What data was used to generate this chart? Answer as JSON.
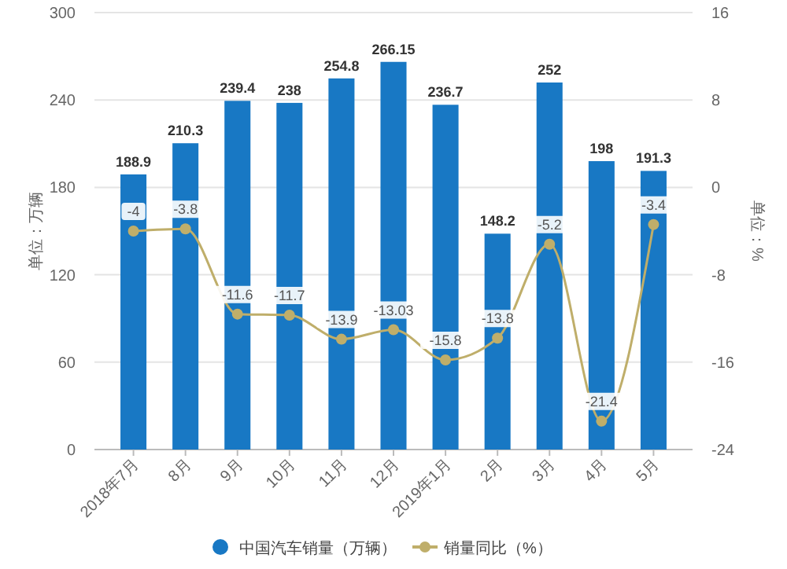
{
  "chart_data": {
    "type": "bar",
    "categories": [
      "2018年7月",
      "8月",
      "9月",
      "10月",
      "11月",
      "12月",
      "2019年1月",
      "2月",
      "3月",
      "4月",
      "5月"
    ],
    "series": [
      {
        "name": "中国汽车销量（万辆）",
        "color": "#1878c4",
        "values": [
          188.9,
          210.3,
          239.4,
          238,
          254.8,
          266.15,
          236.7,
          148.2,
          252,
          198,
          191.3
        ]
      },
      {
        "name": "销量同比（%）",
        "type": "line",
        "axis": "y2",
        "color": "#bfae6a",
        "marker": "circle",
        "values": [
          -4,
          -3.8,
          -11.6,
          -11.7,
          -13.9,
          -13.03,
          -15.8,
          -13.8,
          -5.2,
          -21.4,
          -3.4
        ]
      }
    ],
    "ylabel": "单位：万辆",
    "y2label": "单位：%",
    "ylim": [
      0,
      300
    ],
    "yticks": [
      0,
      60,
      120,
      180,
      240,
      300
    ],
    "y2lim": [
      -24,
      16
    ],
    "y2ticks": [
      -24,
      -16,
      -8,
      0,
      8,
      16
    ],
    "grid": "y",
    "legend": "bottom",
    "data_labels": true
  }
}
